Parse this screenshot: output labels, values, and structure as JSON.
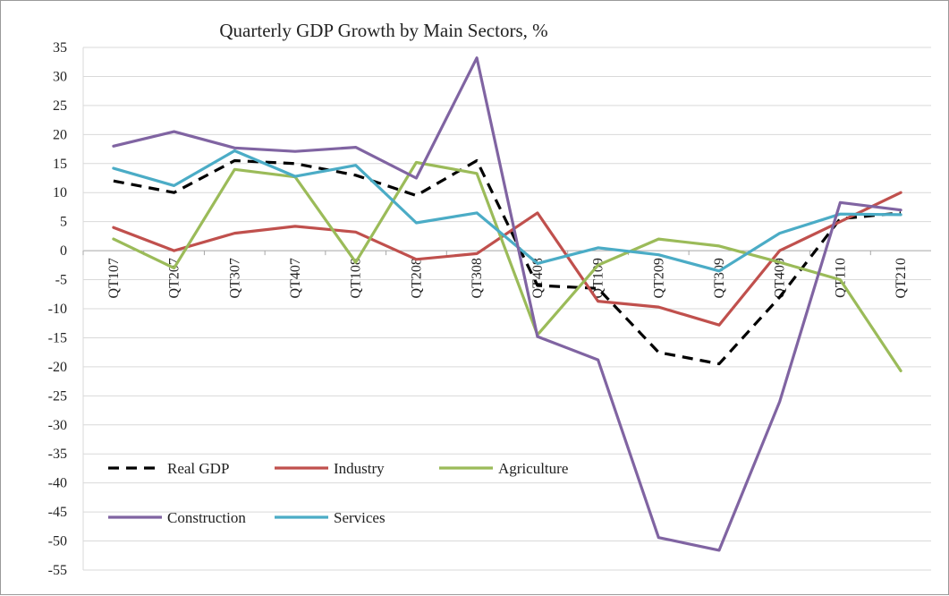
{
  "chart_data": {
    "type": "line",
    "title": "Quarterly GDP Growth by Main Sectors, %",
    "xlabel": "",
    "ylabel": "",
    "categories": [
      "QT107",
      "QT207",
      "QT307",
      "QT407",
      "QT108",
      "QT208",
      "QT308",
      "QT408",
      "QT109",
      "QT209",
      "QT309",
      "QT409",
      "QT110",
      "QT210"
    ],
    "ylim": [
      -55,
      35
    ],
    "yticks": [
      35,
      30,
      25,
      20,
      15,
      10,
      5,
      0,
      -5,
      -10,
      -15,
      -20,
      -25,
      -30,
      -35,
      -40,
      -45,
      -50,
      -55
    ],
    "grid": "horizontal",
    "legend_position": "bottom-left",
    "series": [
      {
        "name": "Real GDP",
        "color": "#000000",
        "dash": "dashed",
        "values": [
          12,
          10,
          15.5,
          15,
          13,
          9.5,
          15.5,
          -6,
          -6.5,
          -17.5,
          -19.5,
          -8,
          5.5,
          6.5
        ]
      },
      {
        "name": "Industry",
        "color": "#c0504d",
        "dash": "solid",
        "values": [
          4,
          0,
          3,
          4.2,
          3.2,
          -1.5,
          -0.5,
          6.5,
          -8.7,
          -9.7,
          -12.8,
          0,
          5,
          10
        ]
      },
      {
        "name": "Agriculture",
        "color": "#9bbb59",
        "dash": "solid",
        "values": [
          2,
          -3,
          14,
          12.7,
          -2,
          15.2,
          13.3,
          -14.5,
          -2.5,
          2,
          0.8,
          -2,
          -5,
          -20.7
        ]
      },
      {
        "name": "Construction",
        "color": "#8064a2",
        "dash": "solid",
        "values": [
          18,
          20.5,
          17.7,
          17.1,
          17.8,
          12.5,
          33.2,
          -14.8,
          -18.8,
          -49.4,
          -51.6,
          -26,
          8.3,
          7
        ]
      },
      {
        "name": "Services",
        "color": "#4bacc6",
        "dash": "solid",
        "values": [
          14.2,
          11.2,
          17.2,
          12.8,
          14.7,
          4.8,
          6.5,
          -2.2,
          0.5,
          -0.7,
          -3.5,
          3,
          6.3,
          6.2
        ]
      }
    ]
  }
}
